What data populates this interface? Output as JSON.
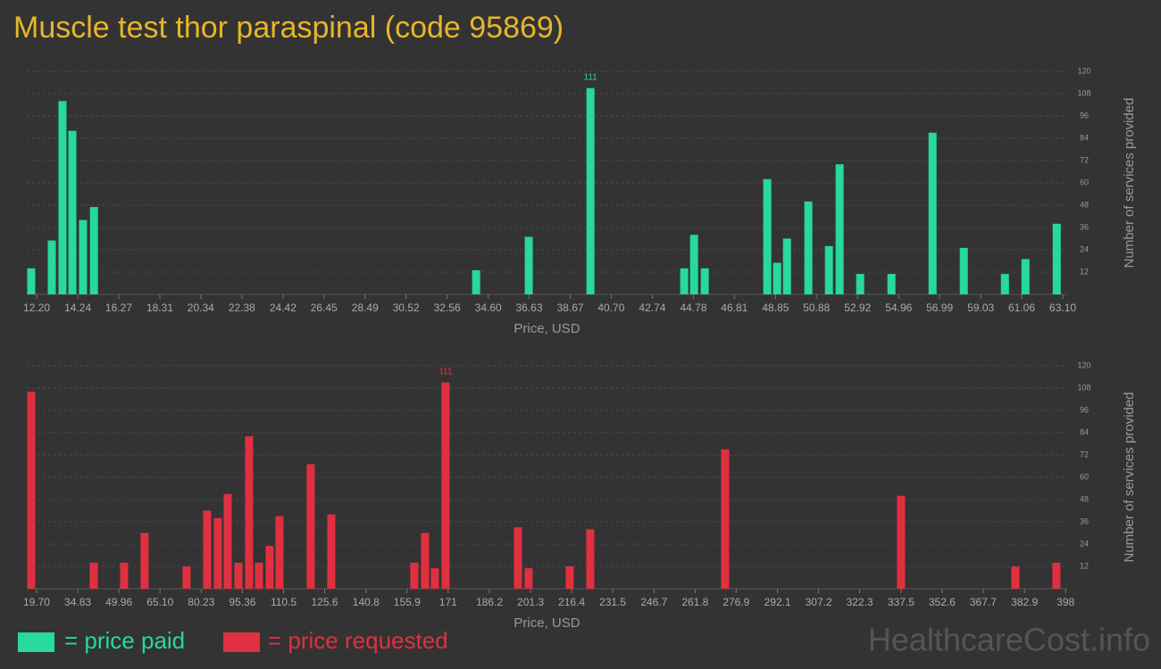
{
  "title": "Muscle test thor paraspinal (code 95869)",
  "watermark": "HealthcareCost.info",
  "chart_data": [
    {
      "type": "bar",
      "x": [
        11.93,
        12.95,
        13.48,
        13.97,
        14.5,
        15.04,
        34.0,
        36.61,
        39.67,
        44.32,
        44.81,
        45.34,
        48.44,
        48.93,
        49.42,
        50.48,
        51.5,
        52.03,
        53.05,
        54.6,
        56.64,
        58.19,
        60.23,
        61.25,
        62.8
      ],
      "series": [
        {
          "name": "= price paid",
          "color": "#27d99a",
          "values": [
            14,
            29,
            104,
            88,
            40,
            47,
            13,
            31,
            111,
            14,
            32,
            14,
            62,
            17,
            30,
            50,
            26,
            70,
            11,
            11,
            87,
            25,
            11,
            19,
            38
          ]
        }
      ],
      "xlabel": "Price, USD",
      "ylabel": "Number of services provided",
      "xlim": [
        11.71,
        63.32
      ],
      "xticks": [
        {
          "value": 12.2,
          "label": "12.20"
        },
        14.24,
        16.27,
        18.31,
        20.34,
        22.38,
        24.42,
        26.45,
        28.49,
        30.52,
        32.56,
        {
          "value": 34.6,
          "label": "34.60"
        },
        36.63,
        38.67,
        {
          "value": 40.7,
          "label": "40.70"
        },
        42.74,
        44.78,
        46.81,
        48.85,
        50.88,
        52.92,
        54.96,
        56.99,
        59.03,
        61.06,
        {
          "value": 63.1,
          "label": "63.10"
        }
      ],
      "ylim": [
        0,
        120
      ],
      "yticks": [
        12,
        24,
        36,
        48,
        60,
        72,
        84,
        96,
        108,
        120
      ],
      "grid": true
    },
    {
      "type": "bar",
      "x": [
        17.73,
        40.71,
        51.87,
        59.42,
        74.85,
        82.41,
        86.34,
        89.96,
        93.9,
        97.84,
        101.45,
        105.39,
        109.0,
        120.49,
        128.04,
        158.57,
        162.51,
        166.12,
        170.06,
        196.65,
        200.59,
        215.69,
        223.25,
        272.82,
        337.5,
        379.52,
        394.62
      ],
      "series": [
        {
          "name": "= price requested",
          "color": "#e0303f",
          "values": [
            106,
            14,
            14,
            30,
            12,
            42,
            38,
            51,
            14,
            82,
            14,
            23,
            39,
            67,
            40,
            14,
            30,
            11,
            111,
            33,
            11,
            12,
            32,
            75,
            50,
            12,
            14
          ]
        }
      ],
      "xlabel": "Price, USD",
      "ylabel": "Number of services provided",
      "xlim": [
        16.1,
        398.6
      ],
      "xticks": [
        {
          "value": 19.7,
          "label": "19.70"
        },
        34.83,
        49.96,
        {
          "value": 65.1,
          "label": "65.10"
        },
        80.23,
        95.36,
        110.5,
        125.6,
        140.8,
        155.9,
        171,
        186.2,
        201.3,
        216.4,
        231.5,
        246.7,
        261.8,
        276.9,
        292.1,
        307.2,
        322.3,
        337.5,
        352.6,
        367.7,
        382.9,
        398
      ],
      "ylim": [
        0,
        120
      ],
      "yticks": [
        12,
        24,
        36,
        48,
        60,
        72,
        84,
        96,
        108,
        120
      ],
      "grid": true
    }
  ]
}
